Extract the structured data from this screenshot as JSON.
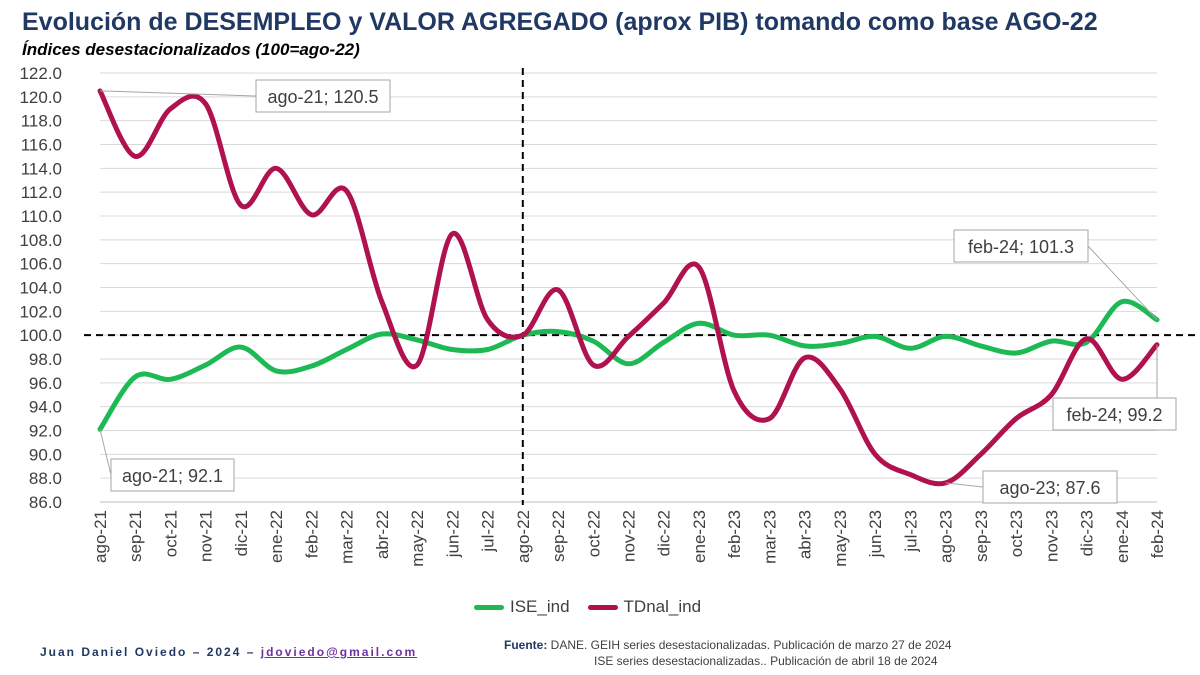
{
  "title": "Evolución de DESEMPLEO y VALOR AGREGADO (aprox PIB) tomando como base AGO-22",
  "subtitle": "Índices desestacionalizados (100=ago-22)",
  "chart_data": {
    "type": "line",
    "categories": [
      "ago-21",
      "sep-21",
      "oct-21",
      "nov-21",
      "dic-21",
      "ene-22",
      "feb-22",
      "mar-22",
      "abr-22",
      "may-22",
      "jun-22",
      "jul-22",
      "ago-22",
      "sep-22",
      "oct-22",
      "nov-22",
      "dic-22",
      "ene-23",
      "feb-23",
      "mar-23",
      "abr-23",
      "may-23",
      "jun-23",
      "jul-23",
      "ago-23",
      "sep-23",
      "oct-23",
      "nov-23",
      "dic-23",
      "ene-24",
      "feb-24"
    ],
    "series": [
      {
        "name": "ISE_ind",
        "color": "#1db954",
        "values": [
          92.1,
          96.5,
          96.3,
          97.5,
          99.0,
          97.0,
          97.4,
          98.8,
          100.1,
          99.6,
          98.8,
          98.8,
          100.0,
          100.3,
          99.5,
          97.6,
          99.4,
          101.0,
          100.0,
          100.0,
          99.1,
          99.3,
          99.9,
          98.9,
          99.9,
          99.1,
          98.5,
          99.5,
          99.4,
          102.8,
          101.3
        ]
      },
      {
        "name": "TDnal_ind",
        "color": "#b0124f",
        "values": [
          120.5,
          115.0,
          119.0,
          119.4,
          110.9,
          114.0,
          110.1,
          112.1,
          102.8,
          97.5,
          108.5,
          101.3,
          100.0,
          103.8,
          97.5,
          99.9,
          102.7,
          105.7,
          95.3,
          93.0,
          98.1,
          95.5,
          90.0,
          88.3,
          87.6,
          90.0,
          93.0,
          95.0,
          99.7,
          96.3,
          99.2
        ]
      }
    ],
    "ylim": [
      86.0,
      122.0
    ],
    "yticks": [
      "86.0",
      "88.0",
      "90.0",
      "92.0",
      "94.0",
      "96.0",
      "98.0",
      "100.0",
      "102.0",
      "104.0",
      "106.0",
      "108.0",
      "110.0",
      "112.0",
      "114.0",
      "116.0",
      "118.0",
      "120.0",
      "122.0"
    ],
    "reference_line_y": 100.0,
    "reference_line_x": "ago-22",
    "grid": true,
    "legend_position": "bottom",
    "annotations": [
      {
        "text": "ago-21; 120.5",
        "series": "TDnal_ind",
        "category": "ago-21"
      },
      {
        "text": "ago-21; 92.1",
        "series": "ISE_ind",
        "category": "ago-21"
      },
      {
        "text": "feb-24; 101.3",
        "series": "ISE_ind",
        "category": "feb-24"
      },
      {
        "text": "feb-24; 99.2",
        "series": "TDnal_ind",
        "category": "feb-24"
      },
      {
        "text": "ago-23; 87.6",
        "series": "TDnal_ind",
        "category": "ago-23"
      }
    ]
  },
  "footer": {
    "author": "Juan Daniel Oviedo – 2024 – ",
    "email": "jdoviedo@gmail.com",
    "source_label": "Fuente:",
    "source_line1": " DANE. GEIH series desestacionalizadas. Publicación de marzo 27 de 2024",
    "source_line2": "ISE series desestacionalizadas.. Publicación de abril 18 de 2024"
  }
}
